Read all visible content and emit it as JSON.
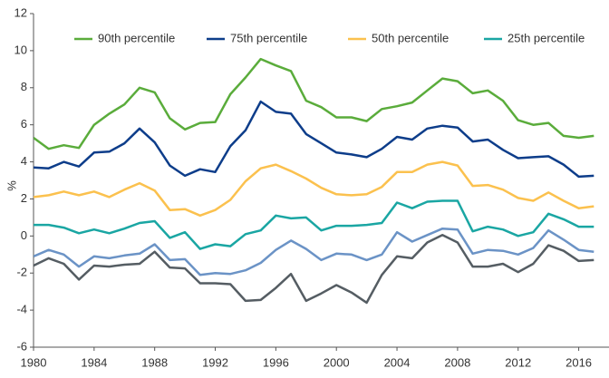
{
  "chart_data": {
    "type": "line",
    "y_label": "%",
    "x": [
      1980,
      1981,
      1982,
      1983,
      1984,
      1985,
      1986,
      1987,
      1988,
      1989,
      1990,
      1991,
      1992,
      1993,
      1994,
      1995,
      1996,
      1997,
      1998,
      1999,
      2000,
      2001,
      2002,
      2003,
      2004,
      2005,
      2006,
      2007,
      2008,
      2009,
      2010,
      2011,
      2012,
      2013,
      2014,
      2015,
      2016,
      2017
    ],
    "xlim": [
      1980,
      2018
    ],
    "xticks": [
      1980,
      1984,
      1988,
      1992,
      1996,
      2000,
      2004,
      2008,
      2012,
      2016
    ],
    "ylim": [
      -6,
      12
    ],
    "yticks": [
      -6,
      -4,
      -2,
      0,
      2,
      4,
      6,
      8,
      10,
      12
    ],
    "grid": false,
    "legend": "top",
    "series": [
      {
        "name": "90th percentile",
        "color": "#5aac3b",
        "values": [
          5.3,
          4.7,
          4.9,
          4.75,
          6.0,
          6.6,
          7.1,
          8.0,
          7.75,
          6.35,
          5.75,
          6.1,
          6.15,
          7.65,
          8.55,
          9.55,
          9.2,
          8.9,
          7.3,
          6.95,
          6.4,
          6.4,
          6.2,
          6.85,
          7.0,
          7.2,
          7.85,
          8.5,
          8.35,
          7.7,
          7.85,
          7.3,
          6.25,
          6.0,
          6.1,
          5.4,
          5.3,
          5.4
        ]
      },
      {
        "name": "75th percentile",
        "color": "#0d3d8a",
        "values": [
          3.7,
          3.65,
          4.0,
          3.75,
          4.5,
          4.55,
          5.0,
          5.8,
          5.05,
          3.8,
          3.25,
          3.6,
          3.45,
          4.85,
          5.7,
          7.25,
          6.7,
          6.6,
          5.5,
          5.0,
          4.5,
          4.4,
          4.25,
          4.7,
          5.35,
          5.2,
          5.8,
          5.95,
          5.85,
          5.1,
          5.2,
          4.65,
          4.2,
          4.25,
          4.3,
          3.85,
          3.2,
          3.25
        ]
      },
      {
        "name": "50th percentile",
        "color": "#fbc14e",
        "values": [
          2.1,
          2.2,
          2.4,
          2.2,
          2.4,
          2.1,
          2.5,
          2.85,
          2.45,
          1.4,
          1.45,
          1.1,
          1.4,
          1.95,
          2.95,
          3.65,
          3.85,
          3.5,
          3.1,
          2.6,
          2.25,
          2.2,
          2.25,
          2.65,
          3.45,
          3.45,
          3.85,
          4.0,
          3.8,
          2.7,
          2.75,
          2.5,
          2.05,
          1.9,
          2.35,
          1.9,
          1.5,
          1.6
        ]
      },
      {
        "name": "25th percentile",
        "color": "#1aa6a3",
        "values": [
          0.6,
          0.6,
          0.45,
          0.15,
          0.35,
          0.15,
          0.4,
          0.7,
          0.8,
          -0.1,
          0.2,
          -0.7,
          -0.45,
          -0.55,
          0.1,
          0.3,
          1.1,
          0.95,
          1.0,
          0.3,
          0.55,
          0.55,
          0.6,
          0.7,
          1.8,
          1.5,
          1.85,
          1.9,
          1.9,
          0.25,
          0.5,
          0.35,
          0.0,
          0.2,
          1.2,
          0.9,
          0.5,
          0.5
        ]
      },
      {
        "color": "#6b93c6",
        "values": [
          -1.1,
          -0.75,
          -1.0,
          -1.65,
          -1.1,
          -1.2,
          -1.05,
          -0.95,
          -0.45,
          -1.3,
          -1.25,
          -2.1,
          -2.0,
          -2.05,
          -1.85,
          -1.45,
          -0.75,
          -0.25,
          -0.7,
          -1.3,
          -0.95,
          -1.0,
          -1.3,
          -1.0,
          0.2,
          -0.3,
          0.05,
          0.4,
          0.35,
          -0.95,
          -0.75,
          -0.8,
          -1.0,
          -0.65,
          0.3,
          -0.2,
          -0.75,
          -0.85
        ]
      },
      {
        "color": "#555d63",
        "values": [
          -1.6,
          -1.2,
          -1.5,
          -2.35,
          -1.6,
          -1.65,
          -1.55,
          -1.5,
          -0.85,
          -1.7,
          -1.75,
          -2.55,
          -2.55,
          -2.6,
          -3.5,
          -3.45,
          -2.8,
          -2.05,
          -3.5,
          -3.1,
          -2.65,
          -3.05,
          -3.6,
          -2.1,
          -1.1,
          -1.2,
          -0.35,
          0.05,
          -0.35,
          -1.65,
          -1.65,
          -1.5,
          -1.95,
          -1.5,
          -0.5,
          -0.8,
          -1.35,
          -1.3
        ]
      }
    ]
  }
}
